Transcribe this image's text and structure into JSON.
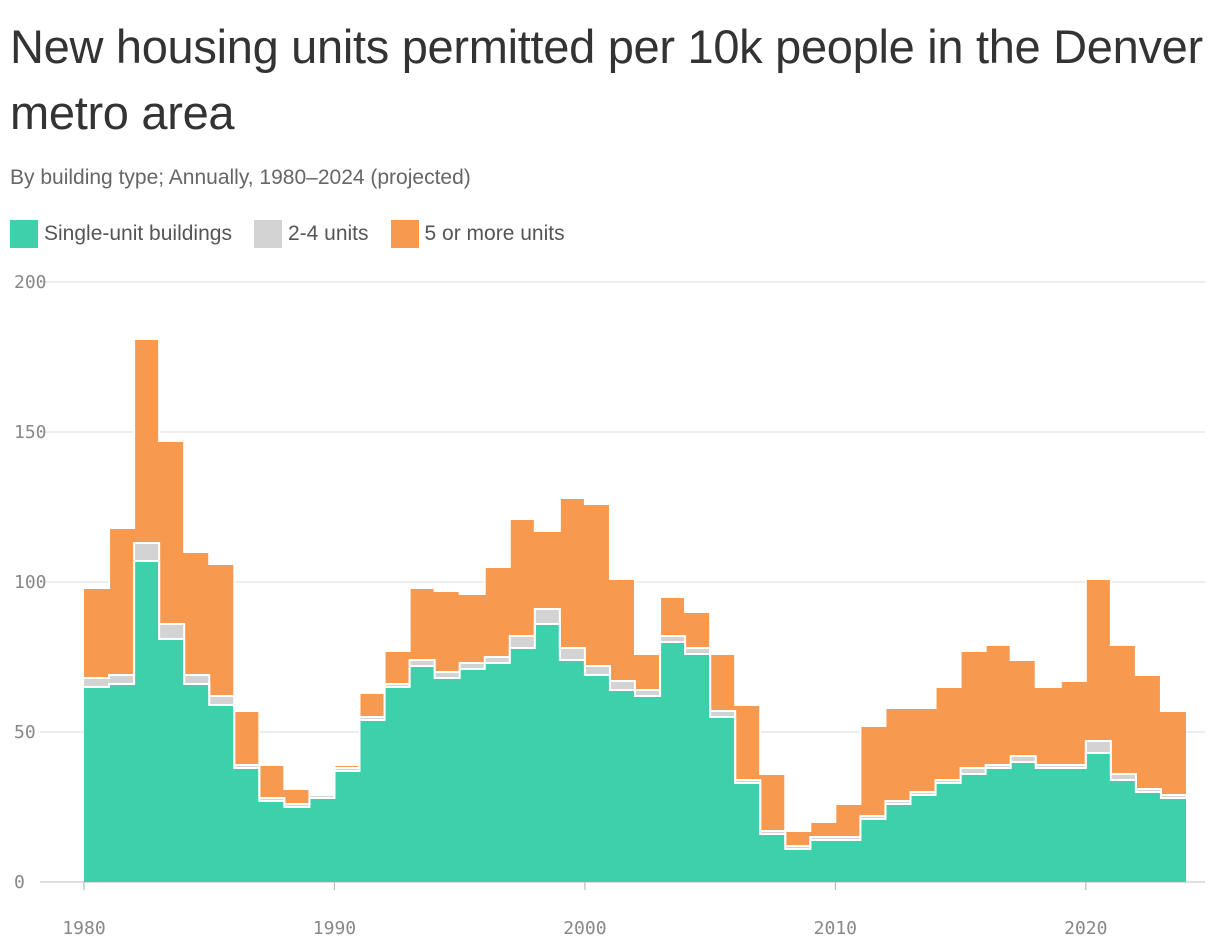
{
  "chart_data": {
    "type": "area",
    "step": true,
    "stacked": true,
    "title": "New housing units permitted per 10k people in the Denver metro area",
    "subtitle": "By building type; Annually, 1980–2024 (projected)",
    "ylim": [
      0,
      200
    ],
    "xlim": [
      1980,
      2024
    ],
    "y_ticks": [
      "0",
      "50",
      "100",
      "150",
      "200"
    ],
    "x_ticks": [
      "1980",
      "1990",
      "2000",
      "2010",
      "2020"
    ],
    "grid": true,
    "legend_position": "top-left",
    "x": [
      1980,
      1981,
      1982,
      1983,
      1984,
      1985,
      1986,
      1987,
      1988,
      1989,
      1990,
      1991,
      1992,
      1993,
      1994,
      1995,
      1996,
      1997,
      1998,
      1999,
      2000,
      2001,
      2002,
      2003,
      2004,
      2005,
      2006,
      2007,
      2008,
      2009,
      2010,
      2011,
      2012,
      2013,
      2014,
      2015,
      2016,
      2017,
      2018,
      2019,
      2020,
      2021,
      2022,
      2023
    ],
    "series": [
      {
        "name": "Single-unit buildings",
        "color": "#3ecfab",
        "values": [
          65,
          66,
          107,
          81,
          66,
          59,
          38,
          27,
          25,
          28,
          37,
          54,
          65,
          72,
          68,
          71,
          73,
          78,
          86,
          74,
          69,
          64,
          62,
          80,
          76,
          55,
          33,
          16,
          11,
          14,
          14,
          21,
          26,
          29,
          33,
          36,
          38,
          40,
          38,
          38,
          43,
          34,
          30,
          28
        ]
      },
      {
        "name": "2-4 units",
        "color": "#d3d3d3",
        "values": [
          3,
          3,
          6,
          5,
          3,
          3,
          1,
          1,
          1,
          1,
          1,
          1,
          1,
          2,
          2,
          2,
          2,
          4,
          5,
          4,
          3,
          3,
          2,
          2,
          2,
          2,
          1,
          1,
          1,
          1,
          1,
          1,
          1,
          1,
          1,
          2,
          1,
          2,
          1,
          1,
          4,
          2,
          1,
          1
        ]
      },
      {
        "name": "5 or more units",
        "color": "#f7994f",
        "values": [
          30,
          49,
          68,
          61,
          41,
          44,
          18,
          11,
          5,
          0,
          1,
          8,
          11,
          24,
          27,
          23,
          30,
          39,
          26,
          50,
          54,
          34,
          12,
          13,
          12,
          19,
          25,
          19,
          5,
          5,
          11,
          30,
          31,
          28,
          31,
          39,
          40,
          32,
          26,
          28,
          54,
          43,
          38,
          28
        ]
      }
    ]
  }
}
